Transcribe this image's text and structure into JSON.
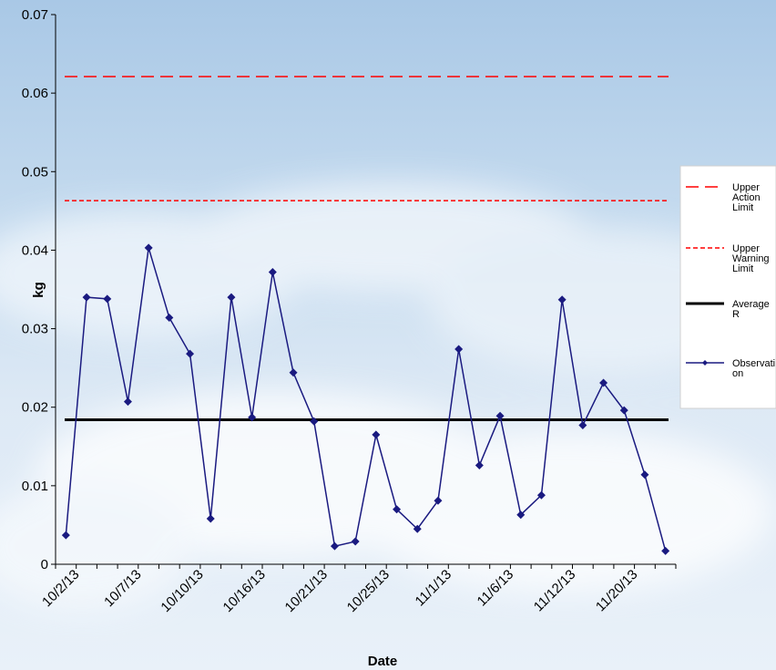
{
  "chart_data": {
    "type": "line",
    "title": "",
    "xlabel": "Date",
    "ylabel": "kg",
    "ylim": [
      0,
      0.07
    ],
    "y_ticks": [
      "0",
      "0.01",
      "0.02",
      "0.03",
      "0.04",
      "0.05",
      "0.06",
      "0.07"
    ],
    "x_tick_labels": [
      "10/2/13",
      "10/7/13",
      "10/10/13",
      "10/16/13",
      "10/21/13",
      "10/25/13",
      "11/1/13",
      "11/6/13",
      "11/12/13",
      "11/20/13"
    ],
    "grid": false,
    "legend_position": "right",
    "reference_lines": [
      {
        "name": "Upper Action Limit",
        "value": 0.0621,
        "color": "#ff0000",
        "style": "long-dash"
      },
      {
        "name": "Upper Warning Limit",
        "value": 0.0463,
        "color": "#ff0000",
        "style": "short-dash"
      },
      {
        "name": "Average R",
        "value": 0.0184,
        "color": "#000000",
        "style": "solid-thick"
      }
    ],
    "series": [
      {
        "name": "Observation",
        "color": "#1a1a80",
        "marker": "diamond",
        "values": [
          0.0037,
          0.034,
          0.0338,
          0.0207,
          0.0403,
          0.0314,
          0.0268,
          0.0058,
          0.034,
          0.0187,
          0.0372,
          0.0244,
          0.0182,
          0.0023,
          0.0029,
          0.0165,
          0.007,
          0.0045,
          0.0081,
          0.0274,
          0.0126,
          0.0189,
          0.0063,
          0.0088,
          0.0337,
          0.0177,
          0.0231,
          0.0196,
          0.0114,
          0.0017
        ]
      }
    ]
  },
  "legend": {
    "items": [
      {
        "lines": [
          "Upper",
          "Action",
          "Limit"
        ]
      },
      {
        "lines": [
          "Upper",
          "Warning",
          "Limit"
        ]
      },
      {
        "lines": [
          "Average",
          "R"
        ]
      },
      {
        "lines": [
          "Observati",
          "on"
        ]
      }
    ]
  }
}
